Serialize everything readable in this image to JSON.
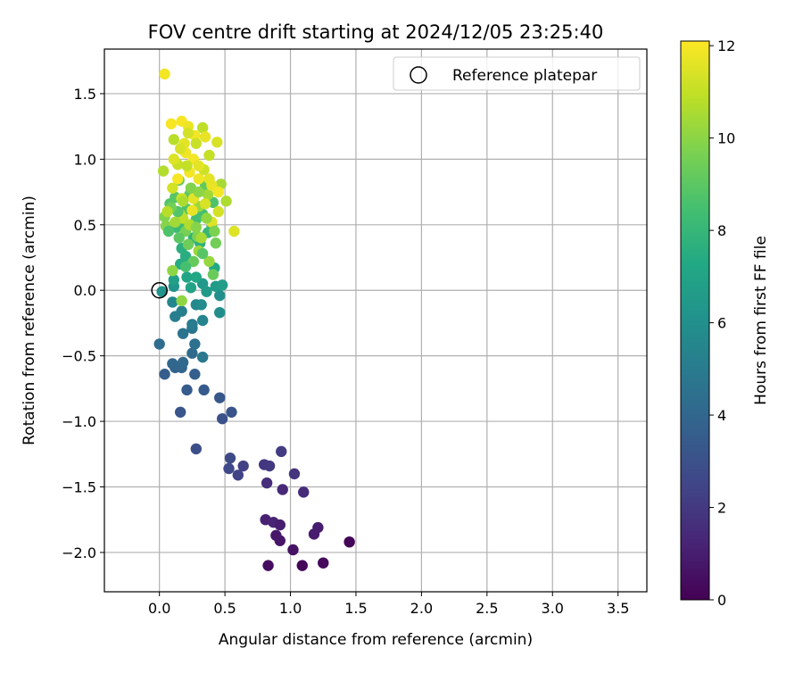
{
  "chart_data": {
    "type": "scatter",
    "title": "FOV centre drift starting at 2024/12/05 23:25:40",
    "xlabel": "Angular distance from reference (arcmin)",
    "ylabel": "Rotation from reference (arcmin)",
    "xlim": [
      -0.42,
      3.72
    ],
    "ylim": [
      -2.3,
      1.84
    ],
    "xticks": [
      "0.0",
      "0.5",
      "1.0",
      "1.5",
      "2.0",
      "2.5",
      "3.0",
      "3.5"
    ],
    "xtick_values": [
      0.0,
      0.5,
      1.0,
      1.5,
      2.0,
      2.5,
      3.0,
      3.5
    ],
    "yticks": [
      "1.5",
      "1.0",
      "0.5",
      "0.0",
      "−0.5",
      "−1.0",
      "−1.5",
      "−2.0"
    ],
    "ytick_values": [
      1.5,
      1.0,
      0.5,
      0.0,
      -0.5,
      -1.0,
      -1.5,
      -2.0
    ],
    "grid": true,
    "legend": {
      "position": "top-right",
      "entries": [
        "Reference platepar"
      ]
    },
    "reference_point": {
      "name": "Reference platepar",
      "x": 0.0,
      "y": 0.0
    },
    "colorbar": {
      "label": "Hours from first FF file",
      "colormap": "viridis",
      "range": [
        0,
        12.1
      ],
      "ticks": [
        "0",
        "2",
        "4",
        "6",
        "8",
        "10",
        "12"
      ],
      "tick_values": [
        0,
        2,
        4,
        6,
        8,
        10,
        12
      ]
    },
    "points": [
      [
        1.45,
        -1.92,
        0.1
      ],
      [
        1.25,
        -2.08,
        0.3
      ],
      [
        1.09,
        -2.1,
        0.2
      ],
      [
        0.83,
        -2.1,
        0.4
      ],
      [
        1.02,
        -1.98,
        0.6
      ],
      [
        0.92,
        -1.91,
        0.7
      ],
      [
        0.89,
        -1.87,
        0.8
      ],
      [
        1.18,
        -1.86,
        0.9
      ],
      [
        1.21,
        -1.81,
        1.0
      ],
      [
        0.81,
        -1.75,
        1.1
      ],
      [
        0.87,
        -1.77,
        1.2
      ],
      [
        0.92,
        -1.79,
        1.0
      ],
      [
        0.94,
        -1.52,
        1.4
      ],
      [
        1.1,
        -1.54,
        1.5
      ],
      [
        0.82,
        -1.47,
        1.6
      ],
      [
        1.03,
        -1.4,
        1.8
      ],
      [
        0.8,
        -1.33,
        1.9
      ],
      [
        0.84,
        -1.34,
        2.0
      ],
      [
        0.93,
        -1.23,
        2.1
      ],
      [
        0.64,
        -1.34,
        2.3
      ],
      [
        0.6,
        -1.41,
        2.4
      ],
      [
        0.53,
        -1.36,
        2.6
      ],
      [
        0.54,
        -1.28,
        2.7
      ],
      [
        0.28,
        -1.21,
        2.9
      ],
      [
        0.48,
        -0.98,
        3.0
      ],
      [
        0.55,
        -0.93,
        3.1
      ],
      [
        0.16,
        -0.93,
        3.2
      ],
      [
        0.46,
        -0.82,
        3.3
      ],
      [
        0.34,
        -0.76,
        3.4
      ],
      [
        0.21,
        -0.76,
        3.5
      ],
      [
        0.04,
        -0.64,
        3.6
      ],
      [
        0.27,
        -0.64,
        3.7
      ],
      [
        0.12,
        -0.59,
        3.8
      ],
      [
        0.17,
        -0.59,
        3.9
      ],
      [
        0.1,
        -0.56,
        4.0
      ],
      [
        0.18,
        -0.55,
        4.1
      ],
      [
        0.25,
        -0.48,
        4.2
      ],
      [
        0.0,
        -0.41,
        4.3
      ],
      [
        0.27,
        -0.41,
        4.5
      ],
      [
        0.18,
        -0.33,
        4.6
      ],
      [
        0.25,
        -0.29,
        4.7
      ],
      [
        0.33,
        -0.51,
        4.9
      ],
      [
        0.25,
        -0.26,
        5.0
      ],
      [
        0.12,
        -0.2,
        5.1
      ],
      [
        0.17,
        -0.16,
        5.2
      ],
      [
        0.33,
        -0.23,
        5.4
      ],
      [
        0.1,
        -0.09,
        5.5
      ],
      [
        0.28,
        -0.11,
        5.6
      ],
      [
        0.32,
        -0.11,
        5.8
      ],
      [
        0.46,
        -0.17,
        5.9
      ],
      [
        0.46,
        -0.04,
        6.0
      ],
      [
        0.02,
        -0.01,
        6.1
      ],
      [
        0.11,
        0.03,
        6.2
      ],
      [
        0.33,
        0.05,
        6.4
      ],
      [
        0.36,
        -0.01,
        6.5
      ],
      [
        0.43,
        0.03,
        6.6
      ],
      [
        0.48,
        0.04,
        6.7
      ],
      [
        0.11,
        0.08,
        6.8
      ],
      [
        0.24,
        0.02,
        7.0
      ],
      [
        0.21,
        0.1,
        7.1
      ],
      [
        0.28,
        0.1,
        7.2
      ],
      [
        0.42,
        0.17,
        7.3
      ],
      [
        0.16,
        0.2,
        7.4
      ],
      [
        0.2,
        0.26,
        7.5
      ],
      [
        0.17,
        0.32,
        7.6
      ],
      [
        0.31,
        0.36,
        7.7
      ],
      [
        0.26,
        0.4,
        7.8
      ],
      [
        0.37,
        0.44,
        8.0
      ],
      [
        0.4,
        0.48,
        8.1
      ],
      [
        0.13,
        0.48,
        8.2
      ],
      [
        0.19,
        0.51,
        8.3
      ],
      [
        0.28,
        0.54,
        8.4
      ],
      [
        0.33,
        0.58,
        8.5
      ],
      [
        0.21,
        0.62,
        8.6
      ],
      [
        0.41,
        0.67,
        8.7
      ],
      [
        0.08,
        0.66,
        8.8
      ],
      [
        0.12,
        0.71,
        8.9
      ],
      [
        0.23,
        0.73,
        9.0
      ],
      [
        0.35,
        0.8,
        9.1
      ],
      [
        0.15,
        0.84,
        9.2
      ],
      [
        0.41,
        0.12,
        9.3
      ],
      [
        0.43,
        0.36,
        9.5
      ],
      [
        0.2,
        0.45,
        9.6
      ],
      [
        0.29,
        0.41,
        9.7
      ],
      [
        0.04,
        0.56,
        9.8
      ],
      [
        0.05,
        0.49,
        9.9
      ],
      [
        0.1,
        0.15,
        10.0
      ],
      [
        0.17,
        -0.08,
        10.1
      ],
      [
        0.16,
        0.58,
        10.2
      ],
      [
        0.3,
        0.64,
        10.3
      ],
      [
        0.37,
        0.73,
        10.4
      ],
      [
        0.47,
        0.81,
        10.5
      ],
      [
        0.51,
        0.68,
        10.6
      ],
      [
        0.03,
        0.91,
        10.7
      ],
      [
        0.11,
        1.15,
        10.8
      ],
      [
        0.33,
        1.24,
        10.9
      ],
      [
        0.38,
        1.03,
        11.0
      ],
      [
        0.14,
        0.96,
        11.1
      ],
      [
        0.34,
        0.92,
        11.2
      ],
      [
        0.45,
        0.6,
        11.3
      ],
      [
        0.44,
        1.13,
        11.4
      ],
      [
        0.57,
        0.45,
        11.5
      ],
      [
        0.38,
        0.85,
        11.6
      ],
      [
        0.25,
        0.61,
        11.7
      ],
      [
        0.04,
        1.65,
        11.9
      ],
      [
        0.09,
        1.27,
        12.0
      ],
      [
        0.17,
        1.29,
        12.0
      ],
      [
        0.22,
        1.25,
        11.8
      ],
      [
        0.27,
        1.18,
        11.9
      ],
      [
        0.19,
        1.12,
        11.6
      ],
      [
        0.35,
        1.17,
        11.7
      ],
      [
        0.2,
        1.05,
        11.8
      ],
      [
        0.26,
        1.0,
        11.9
      ],
      [
        0.11,
        1.0,
        11.5
      ],
      [
        0.3,
        0.95,
        11.6
      ],
      [
        0.23,
        0.9,
        11.9
      ],
      [
        0.14,
        0.85,
        12.0
      ],
      [
        0.3,
        0.85,
        11.8
      ],
      [
        0.4,
        0.8,
        11.7
      ],
      [
        0.45,
        0.75,
        11.9
      ],
      [
        0.26,
        0.7,
        11.6
      ],
      [
        0.35,
        0.66,
        11.4
      ],
      [
        0.17,
        0.7,
        11.2
      ],
      [
        0.1,
        0.78,
        11.3
      ],
      [
        0.4,
        0.52,
        11.5
      ],
      [
        0.18,
        0.55,
        10.9
      ],
      [
        0.23,
        0.5,
        10.7
      ],
      [
        0.32,
        0.4,
        10.5
      ],
      [
        0.38,
        0.22,
        10.2
      ],
      [
        0.3,
        0.3,
        10.3
      ],
      [
        0.22,
        0.35,
        9.4
      ],
      [
        0.15,
        0.4,
        9.0
      ],
      [
        0.26,
        0.22,
        9.2
      ],
      [
        0.33,
        0.28,
        8.9
      ],
      [
        0.2,
        0.18,
        8.5
      ],
      [
        0.07,
        0.45,
        8.7
      ],
      [
        0.14,
        0.6,
        8.8
      ],
      [
        0.09,
        0.63,
        9.5
      ],
      [
        0.24,
        0.78,
        9.8
      ],
      [
        0.3,
        0.75,
        10.0
      ],
      [
        0.36,
        0.55,
        10.1
      ],
      [
        0.42,
        0.45,
        9.7
      ],
      [
        0.28,
        0.48,
        9.9
      ],
      [
        0.12,
        0.52,
        10.4
      ],
      [
        0.18,
        0.68,
        10.6
      ],
      [
        0.06,
        0.6,
        10.8
      ],
      [
        0.21,
        0.95,
        11.0
      ],
      [
        0.28,
        1.12,
        11.1
      ],
      [
        0.22,
        1.2,
        11.3
      ],
      [
        0.16,
        1.08,
        11.4
      ]
    ]
  }
}
